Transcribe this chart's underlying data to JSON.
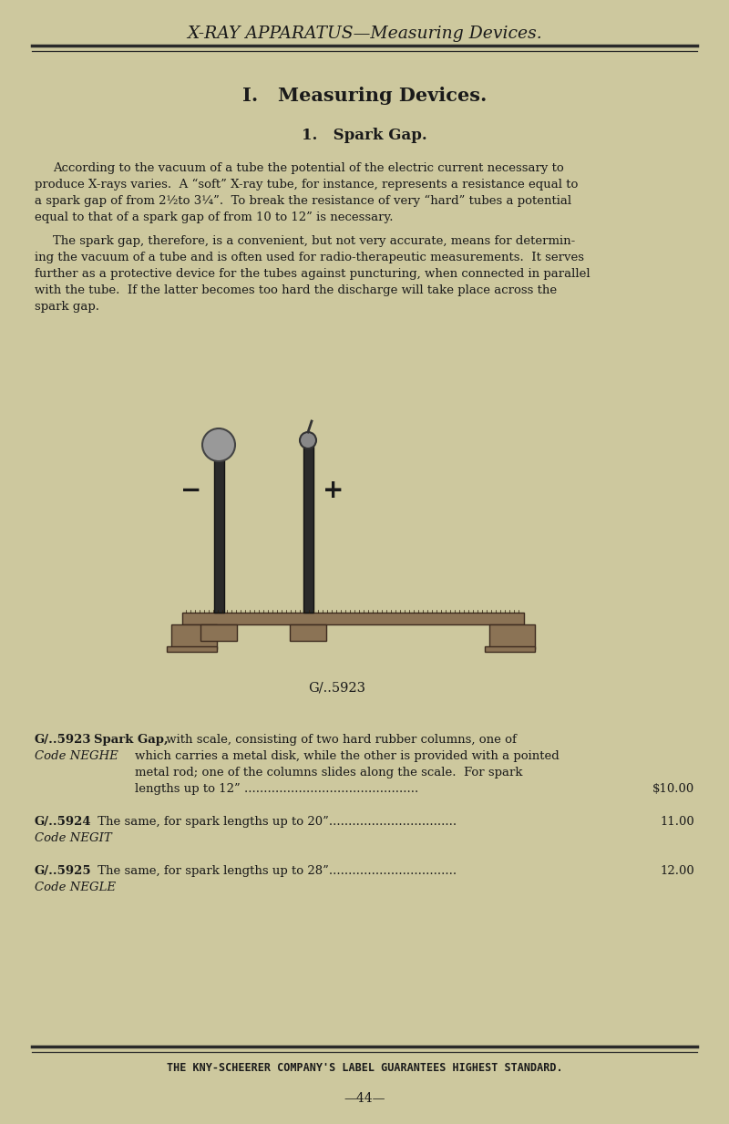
{
  "bg_color": "#cdc89e",
  "text_color": "#1a1a1a",
  "header_title": "X-RAY APPARATUS—Measuring Devices.",
  "section_title": "I.   Measuring Devices.",
  "subsection_title": "1.   Spark Gap.",
  "para1_lines": [
    "According to the vacuum of a tube the potential of the electric current necessary to",
    "produce X-rays varies.  A “soft” X-ray tube, for instance, represents a resistance equal to",
    "a spark gap of from 2½to 3¼”.  To break the resistance of very “hard” tubes a potential",
    "equal to that of a spark gap of from 10 to 12” is necessary."
  ],
  "para2_lines": [
    "The spark gap, therefore, is a convenient, but not very accurate, means for determin-",
    "ing the vacuum of a tube and is often used for radio-therapeutic measurements.  It serves",
    "further as a protective device for the tubes against puncturing, when connected in parallel",
    "with the tube.  If the latter becomes too hard the discharge will take place across the",
    "spark gap."
  ],
  "image_caption": "G/..5923",
  "prod1_code": "G/..5923",
  "prod1_bold": "Spark Gap,",
  "prod1_desc": " with scale, consisting of two hard rubber columns, one of",
  "prod1_code_label": "Code NEGHE",
  "prod1_line2": "which carries a metal disk, while the other is provided with a pointed",
  "prod1_line3": "metal rod; one of the columns slides along the scale.  For spark",
  "prod1_line4": "lengths up to 12” .............................................",
  "prod1_price": "$10.00",
  "prod2_code": "G/..5924",
  "prod2_desc": " The same, for spark lengths up to 20”.................................",
  "prod2_code_label": "Code NEGIT",
  "prod2_price": "11.00",
  "prod3_code": "G/..5925",
  "prod3_desc": " The same, for spark lengths up to 28”.................................",
  "prod3_code_label": "Code NEGLE",
  "prod3_price": "12.00",
  "footer_text": "THE KNY-SCHEERER COMPANY'S LABEL GUARANTEES HIGHEST STANDARD.",
  "page_number": "—44—",
  "rule_color": "#2a2a2a",
  "rail_color": "#8B7355",
  "rail_edge": "#3d2b1f",
  "col_color": "#2a2a2a",
  "col_edge": "#111111"
}
